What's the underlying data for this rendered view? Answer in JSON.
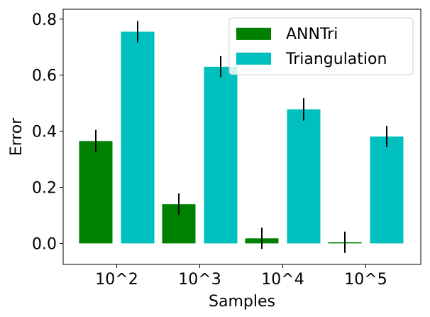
{
  "chart_data": {
    "type": "bar",
    "title": "",
    "xlabel": "Samples",
    "ylabel": "Error",
    "categories": [
      "10^2",
      "10^3",
      "10^4",
      "10^5"
    ],
    "ylim": [
      -0.075,
      0.835
    ],
    "yticks": [
      0.0,
      0.2,
      0.4,
      0.6,
      0.8
    ],
    "ytick_labels": [
      "0.0",
      "0.2",
      "0.4",
      "0.6",
      "0.8"
    ],
    "legend_position": "top-right",
    "grid": false,
    "series": [
      {
        "name": "ANNTri",
        "color": "#008000",
        "values": [
          0.365,
          0.14,
          0.018,
          0.004
        ],
        "errors": [
          0.04,
          0.038,
          0.038,
          0.038
        ]
      },
      {
        "name": "Triangulation",
        "color": "#00bfbf",
        "values": [
          0.755,
          0.63,
          0.478,
          0.381
        ],
        "errors": [
          0.038,
          0.038,
          0.04,
          0.038
        ]
      }
    ]
  }
}
